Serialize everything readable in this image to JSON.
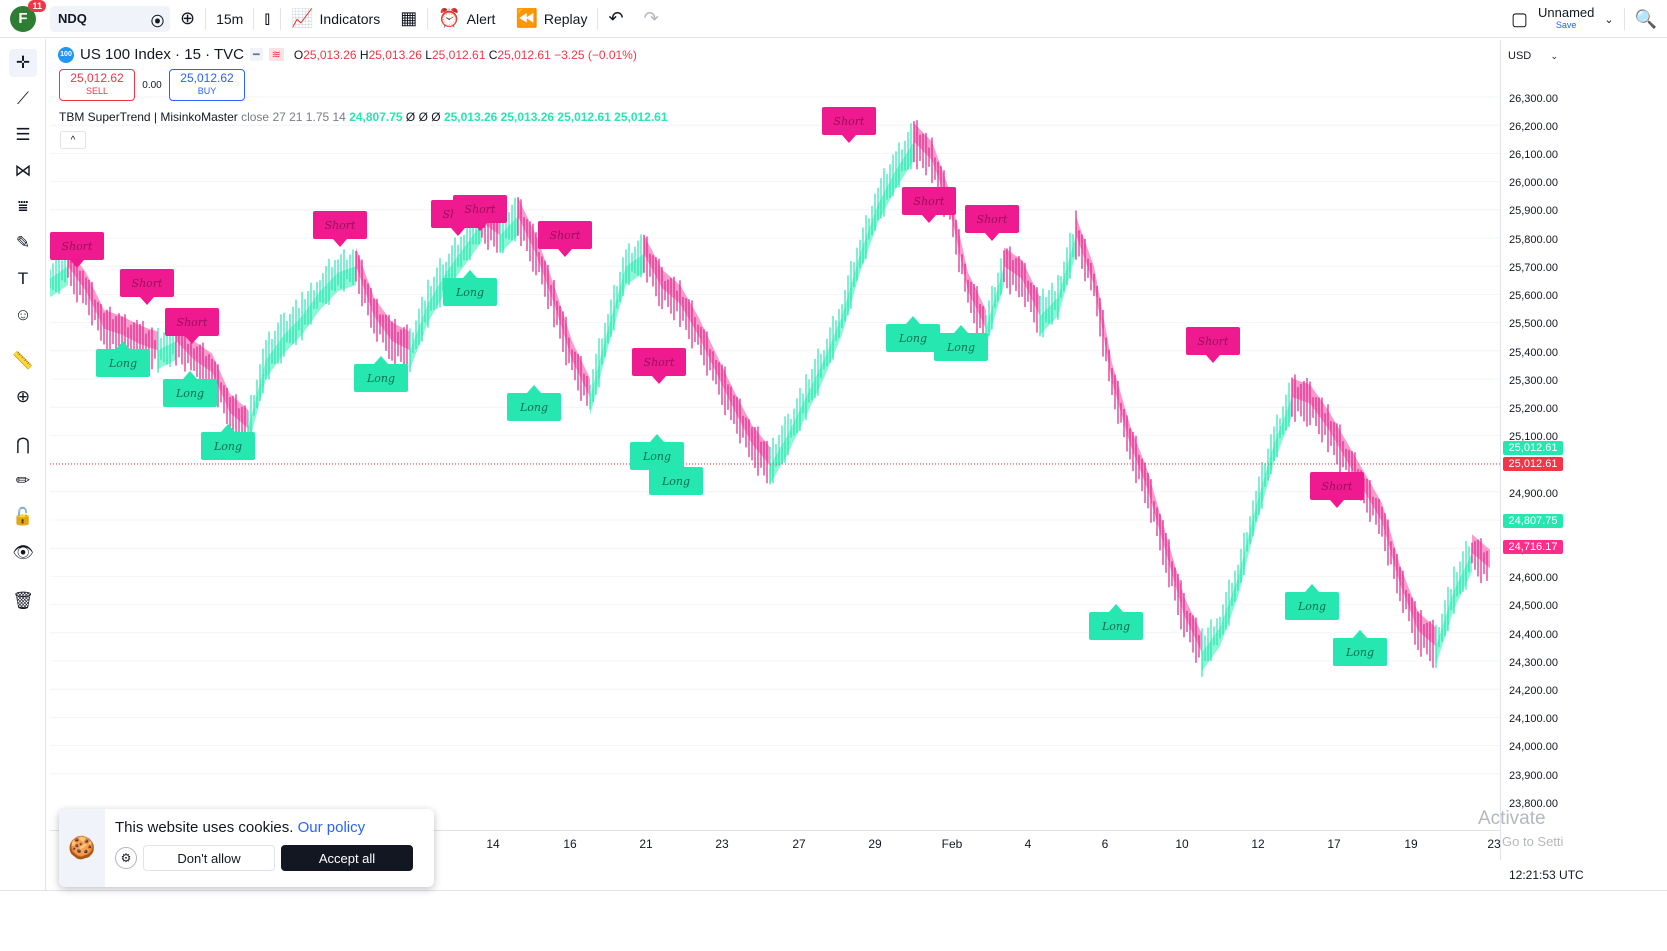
{
  "topbar": {
    "avatar_letter": "F",
    "notification_count": "11",
    "symbol": "NDQ",
    "interval": "15m",
    "indicators_label": "Indicators",
    "alert_label": "Alert",
    "replay_label": "Replay",
    "layout_name": "Unnamed",
    "layout_save": "Save"
  },
  "legend": {
    "title": "US 100 Index · 15 · TVC",
    "logo_text": "100",
    "open": "25,013.26",
    "high": "25,013.26",
    "low": "25,012.61",
    "close": "25,012.61",
    "change": "−3.25 (−0.01%)"
  },
  "trade": {
    "sell_price": "25,012.62",
    "sell_label": "SELL",
    "spread": "0.00",
    "buy_price": "25,012.62",
    "buy_label": "BUY"
  },
  "indicator": {
    "name": "TBM SuperTrend",
    "author": "MisinkoMaster",
    "params": "close 27 21 1.75 14",
    "v1": "24,807.75",
    "nulls": "Ø Ø Ø",
    "v2": "25,013.26",
    "v3": "25,013.26",
    "v4": "25,012.61",
    "v5": "25,012.61"
  },
  "price_axis": {
    "currency": "USD",
    "labels": [
      "26,300.00",
      "26,200.00",
      "26,100.00",
      "26,000.00",
      "25,900.00",
      "25,800.00",
      "25,700.00",
      "25,600.00",
      "25,500.00",
      "25,400.00",
      "25,300.00",
      "25,200.00",
      "25,100.00",
      "24,900.00",
      "24,800.00",
      "24,700.00",
      "24,600.00",
      "24,500.00",
      "24,400.00",
      "24,300.00",
      "24,200.00",
      "24,100.00",
      "24,000.00",
      "23,900.00",
      "23,800.00"
    ],
    "tags": [
      {
        "text": "25,012.61",
        "color": "#26e7b0"
      },
      {
        "text": "25,012.61",
        "color": "#f23645"
      },
      {
        "text": "24,807.75",
        "color": "#26e7b0"
      },
      {
        "text": "24,716.17",
        "color": "#ff2d8a"
      }
    ]
  },
  "time_axis": {
    "labels": [
      "14",
      "16",
      "21",
      "23",
      "27",
      "29",
      "Feb",
      "4",
      "6",
      "10",
      "12",
      "17",
      "19",
      "23"
    ]
  },
  "clock": "12:21:53 UTC",
  "cookie": {
    "text": "This website uses cookies.",
    "link": "Our policy",
    "deny": "Don't allow",
    "accept": "Accept all"
  },
  "watermark": {
    "line1": "Activate",
    "line2": "Go to Setti"
  },
  "colors": {
    "bull": "#26e7b0",
    "bear": "#ff2d8a",
    "bull_fill": "#7ff5d2",
    "bear_fill": "#ff8fc8"
  },
  "chart_data": {
    "type": "line",
    "title": "",
    "ylim": [
      23750,
      26350
    ],
    "price_series": [
      25680,
      25720,
      25640,
      25520,
      25500,
      25470,
      25450,
      25480,
      25420,
      25380,
      25250,
      25200,
      25420,
      25500,
      25560,
      25640,
      25700,
      25720,
      25560,
      25480,
      25450,
      25600,
      25700,
      25780,
      25860,
      25820,
      25880,
      25760,
      25600,
      25420,
      25300,
      25520,
      25720,
      25760,
      25650,
      25600,
      25500,
      25380,
      25260,
      25150,
      25080,
      25180,
      25300,
      25420,
      25560,
      25760,
      25920,
      26030,
      26120,
      26060,
      25900,
      25640,
      25520,
      25720,
      25680,
      25560,
      25620,
      25820,
      25660,
      25350,
      25150,
      25000,
      24800,
      24600,
      24480,
      24560,
      24720,
      24950,
      25150,
      25300,
      25280,
      25200,
      25100,
      25000,
      24900,
      24700,
      24550,
      24500,
      24680,
      24800,
      24750
    ],
    "signals": [
      {
        "type": "Short"
      },
      {
        "type": "Short"
      },
      {
        "type": "Short"
      },
      {
        "type": "Short"
      },
      {
        "type": "Short"
      },
      {
        "type": "Short"
      },
      {
        "type": "Short"
      },
      {
        "type": "Short"
      },
      {
        "type": "Short"
      },
      {
        "type": "Short"
      },
      {
        "type": "Short"
      },
      {
        "type": "Short"
      },
      {
        "type": "Short"
      },
      {
        "type": "Long"
      },
      {
        "type": "Long"
      },
      {
        "type": "Long"
      },
      {
        "type": "Long"
      },
      {
        "type": "Long"
      },
      {
        "type": "Long"
      },
      {
        "type": "Long"
      },
      {
        "type": "Long"
      },
      {
        "type": "Long"
      },
      {
        "type": "Long"
      },
      {
        "type": "Long"
      },
      {
        "type": "Long"
      },
      {
        "type": "Long"
      },
      {
        "type": "Long"
      }
    ]
  }
}
